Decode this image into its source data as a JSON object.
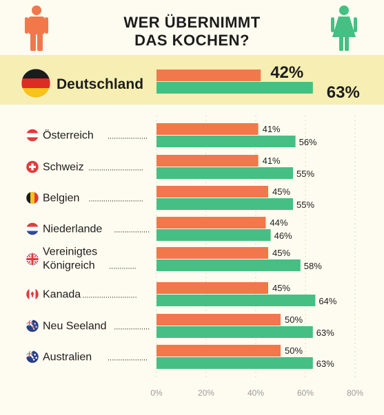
{
  "title_line1": "WER ÜBERNIMMT",
  "title_line2": "DAS KOCHEN?",
  "colors": {
    "men": "#f0784b",
    "women": "#45bf84",
    "highlight": "#f6eeb2",
    "background": "#fefcf0",
    "text": "#1c1c1c"
  },
  "icons": {
    "left": "male-person-icon",
    "right": "female-person-icon"
  },
  "chart_data": {
    "type": "bar",
    "orientation": "horizontal",
    "xlim": [
      0,
      80
    ],
    "xticks": [
      "0%",
      "20%",
      "40%",
      "60%",
      "80%"
    ],
    "grid": true,
    "highlight": {
      "category": "Deutschland",
      "flag": "germany-flag-icon",
      "men": 42,
      "men_label": "42%",
      "women": 63,
      "women_label": "63%"
    },
    "categories": [
      {
        "name": "Österreich",
        "flag": "austria-flag-icon",
        "men": 41,
        "men_label": "41%",
        "women": 56,
        "women_label": "56%"
      },
      {
        "name": "Schweiz",
        "flag": "switzerland-flag-icon",
        "men": 41,
        "men_label": "41%",
        "women": 55,
        "women_label": "55%"
      },
      {
        "name": "Belgien",
        "flag": "belgium-flag-icon",
        "men": 45,
        "men_label": "45%",
        "women": 55,
        "women_label": "55%"
      },
      {
        "name": "Niederlande",
        "flag": "netherlands-flag-icon",
        "men": 44,
        "men_label": "44%",
        "women": 46,
        "women_label": "46%"
      },
      {
        "name": [
          "Vereinigtes",
          "Königreich"
        ],
        "flag": "uk-flag-icon",
        "men": 45,
        "men_label": "45%",
        "women": 58,
        "women_label": "58%"
      },
      {
        "name": "Kanada",
        "flag": "canada-flag-icon",
        "men": 45,
        "men_label": "45%",
        "women": 64,
        "women_label": "64%"
      },
      {
        "name": "Neu Seeland",
        "flag": "new-zealand-flag-icon",
        "men": 50,
        "men_label": "50%",
        "women": 63,
        "women_label": "63%"
      },
      {
        "name": "Australien",
        "flag": "australia-flag-icon",
        "men": 50,
        "men_label": "50%",
        "women": 63,
        "women_label": "63%"
      }
    ]
  }
}
